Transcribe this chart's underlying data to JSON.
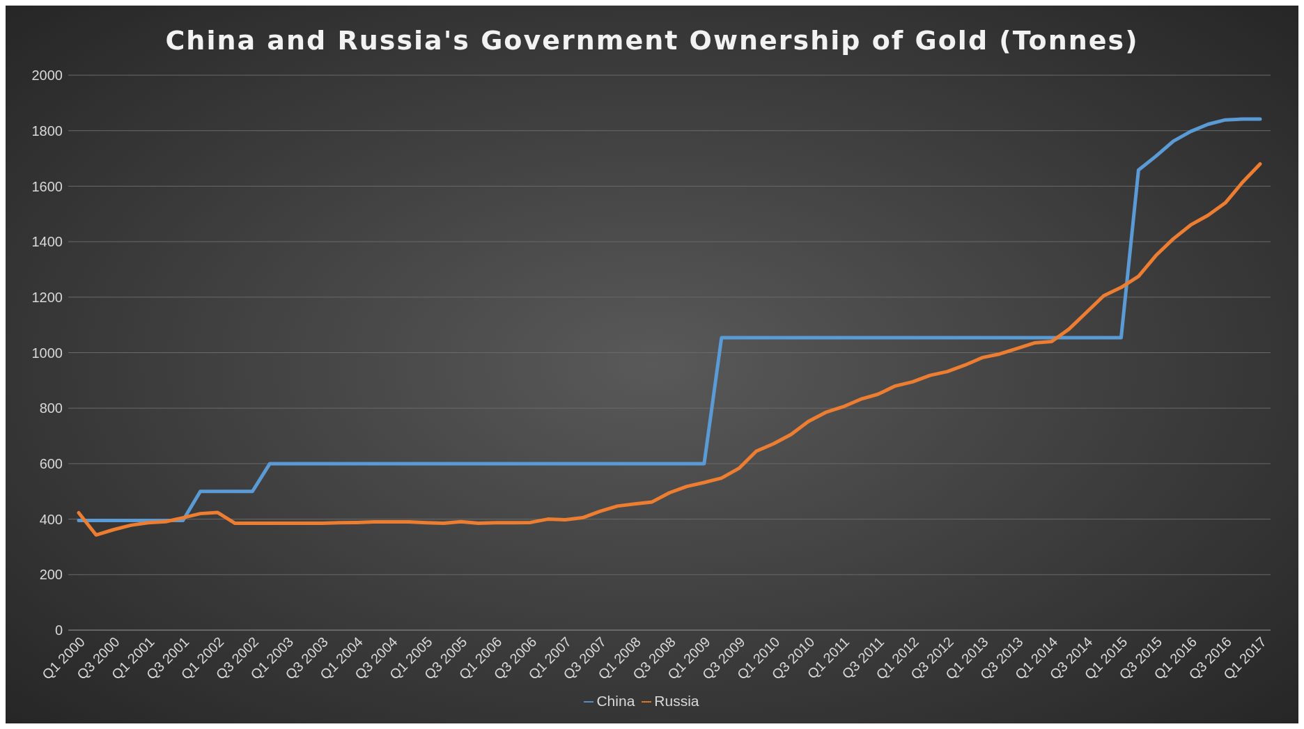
{
  "chart_data": {
    "type": "line",
    "title": "China and Russia's Government Ownership of Gold (Tonnes)",
    "categories": [
      "Q1 2000",
      null,
      "Q3 2000",
      null,
      "Q1 2001",
      null,
      "Q3 2001",
      null,
      "Q1 2002",
      null,
      "Q3 2002",
      null,
      "Q1 2003",
      null,
      "Q3 2003",
      null,
      "Q1 2004",
      null,
      "Q3 2004",
      null,
      "Q1 2005",
      null,
      "Q3 2005",
      null,
      "Q1 2006",
      null,
      "Q3 2006",
      null,
      "Q1 2007",
      null,
      "Q3 2007",
      null,
      "Q1 2008",
      null,
      "Q3 2008",
      null,
      "Q1 2009",
      null,
      "Q3 2009",
      null,
      "Q1 2010",
      null,
      "Q3 2010",
      null,
      "Q1 2011",
      null,
      "Q3 2011",
      null,
      "Q1 2012",
      null,
      "Q3 2012",
      null,
      "Q1 2013",
      null,
      "Q3 2013",
      null,
      "Q1 2014",
      null,
      "Q3 2014",
      null,
      "Q1 2015",
      null,
      "Q3 2015",
      null,
      "Q1 2016",
      null,
      "Q3 2016",
      null,
      "Q1 2017"
    ],
    "series": [
      {
        "name": "China",
        "color": "#5b9bd5",
        "values": [
          395,
          395,
          395,
          395,
          395,
          395,
          395,
          500,
          500,
          500,
          500,
          600,
          600,
          600,
          600,
          600,
          600,
          600,
          600,
          600,
          600,
          600,
          600,
          600,
          600,
          600,
          600,
          600,
          600,
          600,
          600,
          600,
          600,
          600,
          600,
          600,
          600,
          1054,
          1054,
          1054,
          1054,
          1054,
          1054,
          1054,
          1054,
          1054,
          1054,
          1054,
          1054,
          1054,
          1054,
          1054,
          1054,
          1054,
          1054,
          1054,
          1054,
          1054,
          1054,
          1054,
          1054,
          1658,
          1708,
          1762,
          1797,
          1823,
          1839,
          1842,
          1842
        ]
      },
      {
        "name": "Russia",
        "color": "#ed7d31",
        "values": [
          423,
          343,
          362,
          378,
          387,
          391,
          405,
          420,
          424,
          385,
          385,
          385,
          385,
          385,
          385,
          387,
          388,
          390,
          390,
          390,
          387,
          385,
          391,
          385,
          387,
          387,
          388,
          400,
          398,
          405,
          428,
          447,
          455,
          462,
          495,
          518,
          532,
          548,
          583,
          645,
          672,
          705,
          752,
          785,
          805,
          832,
          850,
          880,
          895,
          918,
          932,
          955,
          982,
          995,
          1015,
          1035,
          1040,
          1085,
          1145,
          1205,
          1235,
          1275,
          1350,
          1410,
          1460,
          1495,
          1540,
          1615,
          1680
        ]
      }
    ],
    "ylim": [
      0,
      2000
    ],
    "yticks": [
      0,
      200,
      400,
      600,
      800,
      1000,
      1200,
      1400,
      1600,
      1800,
      2000
    ],
    "grid": "y",
    "legend": "bottom"
  }
}
